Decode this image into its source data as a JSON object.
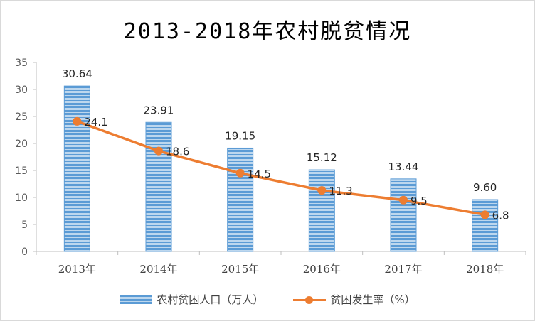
{
  "chart_data": {
    "type": "bar+line",
    "title": "2013-2018年农村脱贫情况",
    "categories": [
      "2013年",
      "2014年",
      "2015年",
      "2016年",
      "2017年",
      "2018年"
    ],
    "series": [
      {
        "name": "农村贫困人口（万人）",
        "kind": "bar",
        "values": [
          30.64,
          23.91,
          19.15,
          15.12,
          13.44,
          9.6
        ],
        "labels": [
          "30.64",
          "23.91",
          "19.15",
          "15.12",
          "13.44",
          "9.60"
        ],
        "color": "#5b9bd5"
      },
      {
        "name": "贫困发生率（%）",
        "kind": "line",
        "values": [
          24.1,
          18.6,
          14.5,
          11.3,
          9.5,
          6.8
        ],
        "labels": [
          "24.1",
          "18.6",
          "14.5",
          "11.3",
          "9.5",
          "6.8"
        ],
        "color": "#ed7d31"
      }
    ],
    "ylim": [
      0,
      35
    ],
    "yticks": [
      "0",
      "5",
      "10",
      "15",
      "20",
      "25",
      "30",
      "35"
    ],
    "xlabel": "",
    "ylabel": "",
    "legend": "bottom",
    "grid": false
  }
}
